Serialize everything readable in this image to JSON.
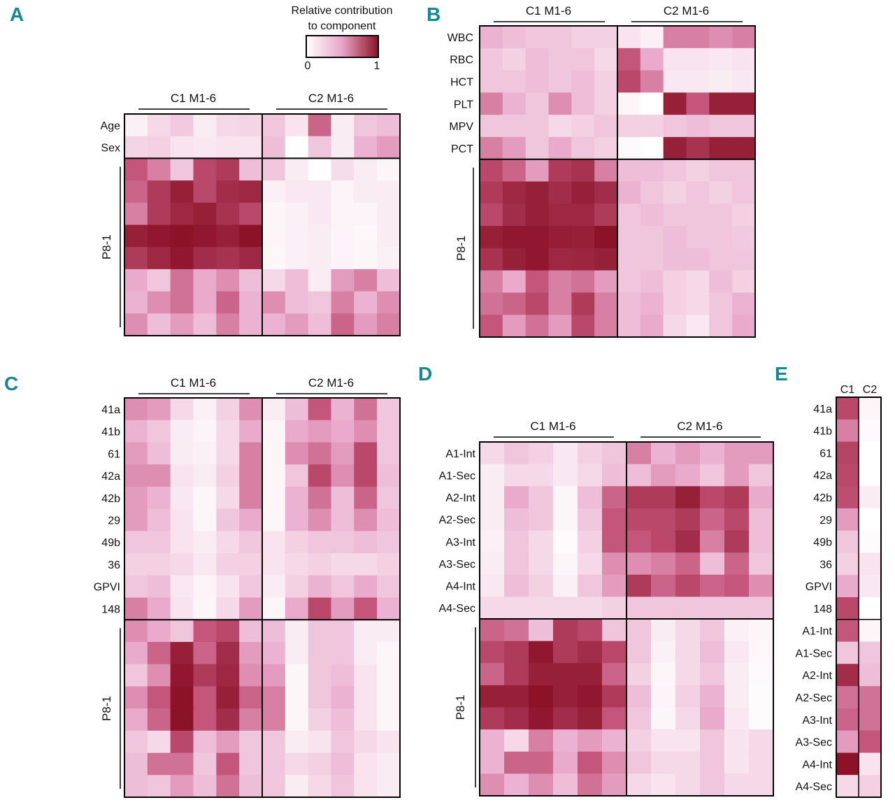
{
  "figure": {
    "legend": {
      "title_line1": "Relative contribution",
      "title_line2": "to component",
      "min_label": "0",
      "max_label": "1",
      "color_low": "#ffffff",
      "color_high": "#8c1228"
    }
  },
  "chart_data": [
    {
      "type": "heatmap",
      "panel": "A",
      "column_groups": [
        "C1 M1-6",
        "C2 M1-6"
      ],
      "row_labels": [
        "Age",
        "Sex"
      ],
      "block_label": "P8-1",
      "values": [
        [
          0.08,
          0.2,
          0.28,
          0.1,
          0.2,
          0.22,
          0.3,
          0.15,
          0.7,
          0.1,
          0.3,
          0.35
        ],
        [
          0.22,
          0.25,
          0.15,
          0.12,
          0.15,
          0.15,
          0.35,
          0.0,
          0.3,
          0.1,
          0.4,
          0.5
        ],
        [
          0.75,
          0.6,
          0.3,
          0.8,
          0.85,
          0.35,
          0.3,
          0.1,
          0.0,
          0.18,
          0.1,
          0.05
        ],
        [
          0.7,
          0.85,
          0.95,
          0.8,
          0.9,
          0.92,
          0.08,
          0.12,
          0.12,
          0.06,
          0.1,
          0.1
        ],
        [
          0.6,
          0.85,
          0.92,
          0.95,
          0.88,
          0.8,
          0.05,
          0.08,
          0.12,
          0.06,
          0.06,
          0.1
        ],
        [
          0.95,
          0.98,
          1.0,
          0.98,
          0.95,
          1.0,
          0.05,
          0.08,
          0.1,
          0.06,
          0.04,
          0.1
        ],
        [
          0.85,
          0.92,
          0.98,
          0.9,
          0.88,
          0.92,
          0.04,
          0.08,
          0.1,
          0.06,
          0.05,
          0.08
        ],
        [
          0.45,
          0.3,
          0.65,
          0.45,
          0.55,
          0.35,
          0.2,
          0.35,
          0.1,
          0.5,
          0.6,
          0.35
        ],
        [
          0.4,
          0.55,
          0.65,
          0.45,
          0.7,
          0.4,
          0.55,
          0.35,
          0.3,
          0.6,
          0.4,
          0.55
        ],
        [
          0.55,
          0.35,
          0.5,
          0.35,
          0.6,
          0.4,
          0.4,
          0.5,
          0.35,
          0.7,
          0.5,
          0.6
        ]
      ]
    },
    {
      "type": "heatmap",
      "panel": "B",
      "column_groups": [
        "C1 M1-6",
        "C2 M1-6"
      ],
      "row_labels": [
        "WBC",
        "RBC",
        "HCT",
        "PLT",
        "MPV",
        "PCT"
      ],
      "block_label": "P8-1",
      "values": [
        [
          0.4,
          0.35,
          0.3,
          0.3,
          0.25,
          0.25,
          0.15,
          0.08,
          0.6,
          0.6,
          0.55,
          0.6
        ],
        [
          0.3,
          0.25,
          0.35,
          0.3,
          0.3,
          0.2,
          0.75,
          0.45,
          0.15,
          0.15,
          0.12,
          0.15
        ],
        [
          0.3,
          0.3,
          0.35,
          0.3,
          0.35,
          0.25,
          0.8,
          0.6,
          0.12,
          0.12,
          0.1,
          0.12
        ],
        [
          0.6,
          0.4,
          0.3,
          0.55,
          0.35,
          0.25,
          0.05,
          0.0,
          0.95,
          0.75,
          0.95,
          0.95
        ],
        [
          0.3,
          0.3,
          0.3,
          0.2,
          0.25,
          0.3,
          0.25,
          0.25,
          0.3,
          0.35,
          0.3,
          0.3
        ],
        [
          0.6,
          0.5,
          0.3,
          0.45,
          0.3,
          0.25,
          0.03,
          0.0,
          0.95,
          0.88,
          0.95,
          0.95
        ],
        [
          0.8,
          0.7,
          0.5,
          0.85,
          0.88,
          0.6,
          0.35,
          0.35,
          0.3,
          0.25,
          0.3,
          0.3
        ],
        [
          0.85,
          0.92,
          0.95,
          0.9,
          0.95,
          0.9,
          0.4,
          0.3,
          0.25,
          0.3,
          0.25,
          0.3
        ],
        [
          0.8,
          0.9,
          0.95,
          0.92,
          0.92,
          0.85,
          0.3,
          0.35,
          0.3,
          0.3,
          0.3,
          0.25
        ],
        [
          0.95,
          0.98,
          0.98,
          0.96,
          0.95,
          1.0,
          0.3,
          0.3,
          0.35,
          0.3,
          0.3,
          0.28
        ],
        [
          0.88,
          0.95,
          0.98,
          0.92,
          0.93,
          0.95,
          0.3,
          0.3,
          0.35,
          0.35,
          0.3,
          0.3
        ],
        [
          0.6,
          0.45,
          0.75,
          0.6,
          0.65,
          0.5,
          0.3,
          0.35,
          0.25,
          0.2,
          0.35,
          0.25
        ],
        [
          0.65,
          0.7,
          0.8,
          0.6,
          0.85,
          0.6,
          0.35,
          0.4,
          0.25,
          0.2,
          0.3,
          0.4
        ],
        [
          0.75,
          0.5,
          0.65,
          0.5,
          0.8,
          0.6,
          0.35,
          0.45,
          0.2,
          0.12,
          0.3,
          0.45
        ]
      ]
    },
    {
      "type": "heatmap",
      "panel": "C",
      "column_groups": [
        "C1 M1-6",
        "C2 M1-6"
      ],
      "row_labels": [
        "41a",
        "41b",
        "61",
        "42a",
        "42b",
        "29",
        "49b",
        "36",
        "GPVI",
        "148"
      ],
      "block_label": "P8-1",
      "values": [
        [
          0.55,
          0.5,
          0.2,
          0.08,
          0.25,
          0.55,
          0.1,
          0.35,
          0.75,
          0.4,
          0.65,
          0.3
        ],
        [
          0.4,
          0.3,
          0.1,
          0.06,
          0.2,
          0.45,
          0.05,
          0.45,
          0.5,
          0.45,
          0.55,
          0.3
        ],
        [
          0.5,
          0.35,
          0.1,
          0.08,
          0.2,
          0.6,
          0.05,
          0.55,
          0.65,
          0.5,
          0.8,
          0.3
        ],
        [
          0.55,
          0.55,
          0.15,
          0.1,
          0.25,
          0.6,
          0.05,
          0.3,
          0.8,
          0.55,
          0.8,
          0.35
        ],
        [
          0.5,
          0.4,
          0.12,
          0.05,
          0.2,
          0.6,
          0.05,
          0.4,
          0.65,
          0.35,
          0.7,
          0.3
        ],
        [
          0.5,
          0.35,
          0.15,
          0.05,
          0.3,
          0.45,
          0.05,
          0.4,
          0.55,
          0.35,
          0.55,
          0.35
        ],
        [
          0.3,
          0.3,
          0.15,
          0.1,
          0.2,
          0.3,
          0.15,
          0.25,
          0.3,
          0.3,
          0.35,
          0.3
        ],
        [
          0.25,
          0.25,
          0.2,
          0.12,
          0.25,
          0.25,
          0.15,
          0.2,
          0.25,
          0.2,
          0.2,
          0.25
        ],
        [
          0.3,
          0.35,
          0.12,
          0.06,
          0.15,
          0.3,
          0.1,
          0.25,
          0.4,
          0.3,
          0.45,
          0.3
        ],
        [
          0.6,
          0.45,
          0.15,
          0.05,
          0.2,
          0.5,
          0.05,
          0.45,
          0.8,
          0.5,
          0.75,
          0.4
        ],
        [
          0.55,
          0.45,
          0.3,
          0.75,
          0.8,
          0.35,
          0.35,
          0.1,
          0.3,
          0.3,
          0.1,
          0.1
        ],
        [
          0.45,
          0.7,
          0.95,
          0.7,
          0.9,
          0.5,
          0.4,
          0.1,
          0.3,
          0.3,
          0.1,
          0.05
        ],
        [
          0.3,
          0.55,
          0.98,
          0.85,
          0.92,
          0.55,
          0.5,
          0.05,
          0.3,
          0.35,
          0.15,
          0.05
        ],
        [
          0.55,
          0.75,
          1.0,
          0.75,
          0.95,
          0.7,
          0.6,
          0.05,
          0.3,
          0.4,
          0.15,
          0.05
        ],
        [
          0.45,
          0.7,
          1.0,
          0.75,
          0.9,
          0.6,
          0.6,
          0.05,
          0.25,
          0.35,
          0.15,
          0.05
        ],
        [
          0.3,
          0.2,
          0.8,
          0.35,
          0.5,
          0.3,
          0.3,
          0.1,
          0.15,
          0.3,
          0.2,
          0.15
        ],
        [
          0.35,
          0.65,
          0.65,
          0.3,
          0.75,
          0.3,
          0.3,
          0.2,
          0.25,
          0.35,
          0.15,
          0.1
        ],
        [
          0.35,
          0.3,
          0.5,
          0.35,
          0.65,
          0.35,
          0.3,
          0.1,
          0.2,
          0.3,
          0.15,
          0.1
        ]
      ]
    },
    {
      "type": "heatmap",
      "panel": "D",
      "column_groups": [
        "C1 M1-6",
        "C2 M1-6"
      ],
      "row_labels": [
        "A1-Int",
        "A1-Sec",
        "A2-Int",
        "A2-Sec",
        "A3-Int",
        "A3-Sec",
        "A4-Int",
        "A4-Sec"
      ],
      "block_label": "P8-1",
      "values": [
        [
          0.2,
          0.3,
          0.25,
          0.12,
          0.25,
          0.3,
          0.6,
          0.4,
          0.5,
          0.4,
          0.5,
          0.5
        ],
        [
          0.1,
          0.2,
          0.2,
          0.12,
          0.2,
          0.35,
          0.35,
          0.5,
          0.45,
          0.3,
          0.5,
          0.3
        ],
        [
          0.1,
          0.45,
          0.3,
          0.05,
          0.35,
          0.7,
          0.85,
          0.85,
          0.95,
          0.8,
          0.85,
          0.45
        ],
        [
          0.1,
          0.35,
          0.3,
          0.05,
          0.3,
          0.75,
          0.8,
          0.8,
          0.85,
          0.7,
          0.8,
          0.35
        ],
        [
          0.08,
          0.3,
          0.2,
          0.02,
          0.25,
          0.75,
          0.75,
          0.8,
          0.9,
          0.6,
          0.85,
          0.35
        ],
        [
          0.1,
          0.3,
          0.2,
          0.05,
          0.2,
          0.55,
          0.55,
          0.6,
          0.7,
          0.35,
          0.7,
          0.3
        ],
        [
          0.12,
          0.35,
          0.25,
          0.08,
          0.3,
          0.5,
          0.85,
          0.7,
          0.8,
          0.7,
          0.75,
          0.55
        ],
        [
          0.2,
          0.2,
          0.2,
          0.2,
          0.2,
          0.25,
          0.3,
          0.3,
          0.3,
          0.3,
          0.3,
          0.3
        ],
        [
          0.7,
          0.65,
          0.35,
          0.85,
          0.8,
          0.3,
          0.3,
          0.1,
          0.2,
          0.3,
          0.08,
          0.05
        ],
        [
          0.8,
          0.85,
          0.98,
          0.85,
          0.9,
          0.8,
          0.3,
          0.08,
          0.2,
          0.35,
          0.12,
          0.04
        ],
        [
          0.7,
          0.85,
          0.95,
          0.95,
          0.95,
          0.7,
          0.25,
          0.05,
          0.2,
          0.3,
          0.1,
          0.03
        ],
        [
          0.95,
          0.95,
          1.0,
          0.95,
          0.98,
          0.85,
          0.35,
          0.06,
          0.25,
          0.4,
          0.1,
          0.02
        ],
        [
          0.85,
          0.9,
          0.98,
          0.9,
          0.95,
          0.75,
          0.3,
          0.05,
          0.2,
          0.45,
          0.12,
          0.02
        ],
        [
          0.4,
          0.2,
          0.6,
          0.4,
          0.5,
          0.4,
          0.25,
          0.15,
          0.15,
          0.3,
          0.15,
          0.2
        ],
        [
          0.4,
          0.7,
          0.7,
          0.45,
          0.75,
          0.55,
          0.3,
          0.2,
          0.2,
          0.3,
          0.15,
          0.2
        ],
        [
          0.55,
          0.4,
          0.55,
          0.35,
          0.65,
          0.5,
          0.2,
          0.15,
          0.2,
          0.3,
          0.2,
          0.2
        ]
      ]
    },
    {
      "type": "heatmap",
      "panel": "E",
      "column_groups": [
        "C1",
        "C2"
      ],
      "row_labels": [
        "41a",
        "41b",
        "61",
        "42a",
        "42b",
        "29",
        "49b",
        "36",
        "GPVI",
        "148",
        "A1-Int",
        "A1-Sec",
        "A2-Int",
        "A2-Sec",
        "A3-Int",
        "A3-Sec",
        "A4-Int",
        "A4-Sec"
      ],
      "values": [
        [
          0.8,
          0.05
        ],
        [
          0.6,
          0.03
        ],
        [
          0.82,
          0.0
        ],
        [
          0.8,
          0.0
        ],
        [
          0.78,
          0.1
        ],
        [
          0.5,
          0.0
        ],
        [
          0.3,
          0.02
        ],
        [
          0.25,
          0.15
        ],
        [
          0.45,
          0.12
        ],
        [
          0.8,
          0.0
        ],
        [
          0.75,
          0.05
        ],
        [
          0.3,
          0.3
        ],
        [
          0.9,
          0.35
        ],
        [
          0.65,
          0.65
        ],
        [
          0.7,
          0.65
        ],
        [
          0.5,
          0.75
        ],
        [
          1.0,
          0.15
        ],
        [
          0.2,
          0.25
        ]
      ]
    }
  ]
}
